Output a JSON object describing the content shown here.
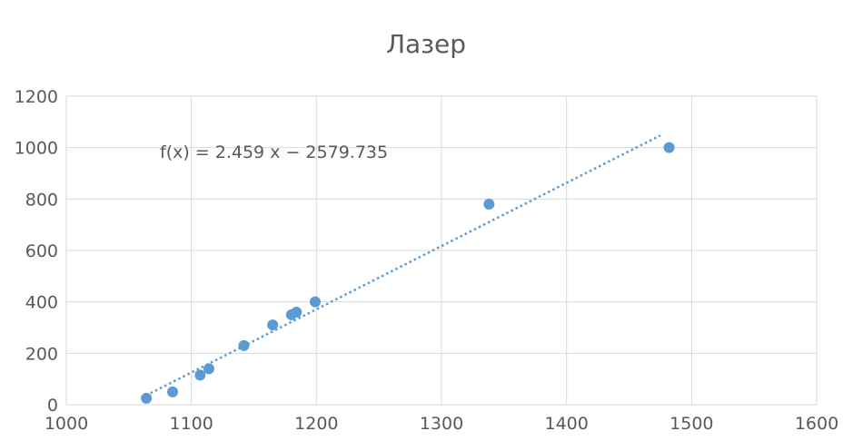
{
  "chart_data": {
    "type": "scatter",
    "title": "Лазер",
    "xlabel": "",
    "ylabel": "",
    "xlim": [
      1000,
      1600
    ],
    "ylim": [
      0,
      1200
    ],
    "x_ticks": [
      1000,
      1100,
      1200,
      1300,
      1400,
      1500,
      1600
    ],
    "y_ticks": [
      0,
      200,
      400,
      600,
      800,
      1000,
      1200
    ],
    "grid": true,
    "legend": "none",
    "colors": {
      "points": "#5b9bd5",
      "trendline": "#5b9bd5",
      "grid": "#d9d9d9",
      "text": "#595959"
    },
    "series": [
      {
        "points": [
          {
            "x": 1064,
            "y": 25
          },
          {
            "x": 1085,
            "y": 50
          },
          {
            "x": 1107,
            "y": 115
          },
          {
            "x": 1114,
            "y": 140
          },
          {
            "x": 1142,
            "y": 230
          },
          {
            "x": 1165,
            "y": 310
          },
          {
            "x": 1180,
            "y": 350
          },
          {
            "x": 1184,
            "y": 360
          },
          {
            "x": 1199,
            "y": 400
          },
          {
            "x": 1338,
            "y": 780
          },
          {
            "x": 1482,
            "y": 1000
          }
        ]
      }
    ],
    "trendline": {
      "type": "linear",
      "slope": 2.459,
      "intercept": -2579.735,
      "x_range": [
        1060,
        1475
      ],
      "equation": "f(x) = 2.459 x − 2579.735"
    }
  }
}
